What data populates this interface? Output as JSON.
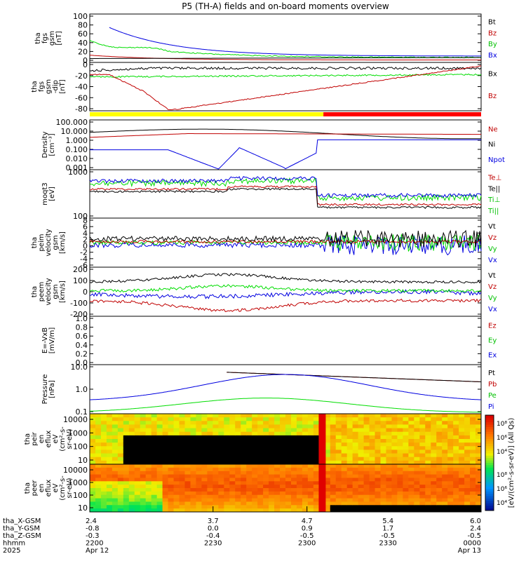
{
  "title": "P5 (TH-A) fields and on-board moments overview",
  "mission_bar": {
    "colors": [
      "#ffff00",
      "#ff0000"
    ],
    "split_x_fraction": 0.597
  },
  "chart_data": [
    {
      "type": "line",
      "ylabel": [
        "tha",
        "fgs",
        "gsm",
        "[nT]"
      ],
      "ylim": [
        0,
        100
      ],
      "yticks": [
        "100",
        "80",
        "60",
        "40",
        "20",
        "0"
      ],
      "legend": [
        {
          "label": "Bt",
          "color": "#000000"
        },
        {
          "label": "Bz",
          "color": "#c00000"
        },
        {
          "label": "By",
          "color": "#00c000"
        },
        {
          "label": "Bx",
          "color": "#0000e0"
        }
      ]
    },
    {
      "type": "line",
      "ylabel": [
        "tha",
        "fgs",
        "gsm",
        "-dip",
        "[nT]"
      ],
      "ylim": [
        -95,
        10
      ],
      "yticks": [
        "0",
        "-20",
        "-40",
        "-60",
        "-80"
      ],
      "legend": [
        {
          "label": "Bx",
          "color": "#000000"
        },
        {
          "label": "Bz",
          "color": "#c00000"
        }
      ]
    },
    {
      "type": "line",
      "ylabel": [
        "Density",
        "[cm^-3]"
      ],
      "yscale": "log",
      "yticks": [
        "100.000",
        "10.000",
        "1.000",
        "0.100",
        "0.010",
        "0.001"
      ],
      "legend": [
        {
          "label": "Ne",
          "color": "#c00000"
        },
        {
          "label": "Ni",
          "color": "#000000"
        },
        {
          "label": "Npot",
          "color": "#0000e0"
        }
      ]
    },
    {
      "type": "line",
      "ylabel": [
        "moqt3",
        "[eV]"
      ],
      "yscale": "log",
      "yticks": [
        "1000",
        "100"
      ],
      "legend": [
        {
          "label": "Te⊥",
          "color": "#c00000"
        },
        {
          "label": "Te||",
          "color": "#000000"
        },
        {
          "label": "Ti⊥",
          "color": "#00c000"
        },
        {
          "label": "Ti||",
          "color": "#00c000"
        }
      ]
    },
    {
      "type": "line",
      "ylabel": [
        "tha",
        "peim",
        "velocity",
        "gsm",
        "[km/s]"
      ],
      "ylim": [
        -6,
        8
      ],
      "yticks": [
        "8",
        "6",
        "4",
        "2",
        "0",
        "-2",
        "-4",
        "-6"
      ],
      "legend": [
        {
          "label": "Vt",
          "color": "#000000"
        },
        {
          "label": "Vz",
          "color": "#c00000"
        },
        {
          "label": "Vy",
          "color": "#00c000"
        },
        {
          "label": "Vx",
          "color": "#0000e0"
        }
      ]
    },
    {
      "type": "line",
      "ylabel": [
        "tha",
        "peem",
        "velocity",
        "gsm",
        "[km/s]"
      ],
      "ylim": [
        -200,
        250
      ],
      "yticks": [
        "200",
        "100",
        "0",
        "-100",
        "-200"
      ],
      "legend": [
        {
          "label": "Vt",
          "color": "#000000"
        },
        {
          "label": "Vz",
          "color": "#c00000"
        },
        {
          "label": "Vy",
          "color": "#00c000"
        },
        {
          "label": "Vx",
          "color": "#0000e0"
        }
      ]
    },
    {
      "type": "line",
      "ylabel": [
        "E=-VxB",
        "[mV/m]"
      ],
      "ylim": [
        0,
        1
      ],
      "yticks": [
        "1.0",
        "0.8",
        "0.6",
        "0.4",
        "0.2",
        "0.0"
      ],
      "legend": [
        {
          "label": "Ez",
          "color": "#c00000"
        },
        {
          "label": "Ey",
          "color": "#00c000"
        },
        {
          "label": "Ex",
          "color": "#0000e0"
        }
      ]
    },
    {
      "type": "line",
      "ylabel": [
        "Pressure",
        "[nPa]"
      ],
      "yscale": "log",
      "yticks": [
        "10.0",
        "1.0",
        "0.1"
      ],
      "legend": [
        {
          "label": "Pt",
          "color": "#000000"
        },
        {
          "label": "Pb",
          "color": "#c00000"
        },
        {
          "label": "Pe",
          "color": "#00c000"
        },
        {
          "label": "Pi",
          "color": "#0000e0"
        }
      ]
    },
    {
      "type": "heatmap",
      "ylabel": [
        "tha",
        "peir",
        "en",
        "eflux",
        "eV",
        "(cm^2-s-",
        "sr-eV)"
      ],
      "yticks": [
        "10000",
        "1000",
        "100",
        "10"
      ]
    },
    {
      "type": "heatmap",
      "ylabel": [
        "tha",
        "peer",
        "en",
        "eflux",
        "eV",
        "(cm^2-s-",
        "sr-eV)"
      ],
      "yticks": [
        "10000",
        "1000",
        "100",
        "10"
      ]
    }
  ],
  "colorbar": {
    "label": "[eV/(cm^2-s-sr-eV)] (All Qs)",
    "ticks_top": [
      "10^8",
      "10^6",
      "10^4"
    ],
    "ticks_bottom": [
      "10^8",
      "10^6",
      "10^4"
    ]
  },
  "x_axis": {
    "rows": [
      {
        "label": "tha_X-GSM",
        "values": [
          "2.4",
          "3.7",
          "4.7",
          "5.4",
          "6.0"
        ]
      },
      {
        "label": "tha_Y-GSM",
        "values": [
          "-0.8",
          "0.0",
          "0.9",
          "1.7",
          "2.4"
        ]
      },
      {
        "label": "tha_Z-GSM",
        "values": [
          "-0.3",
          "-0.4",
          "-0.5",
          "-0.5",
          "-0.5"
        ]
      },
      {
        "label": "hhmm",
        "values": [
          "2200",
          "2230",
          "2300",
          "2330",
          "0000"
        ]
      },
      {
        "label": "2025",
        "values": [
          "Apr 12",
          "",
          "",
          "",
          "Apr 13"
        ]
      }
    ]
  }
}
